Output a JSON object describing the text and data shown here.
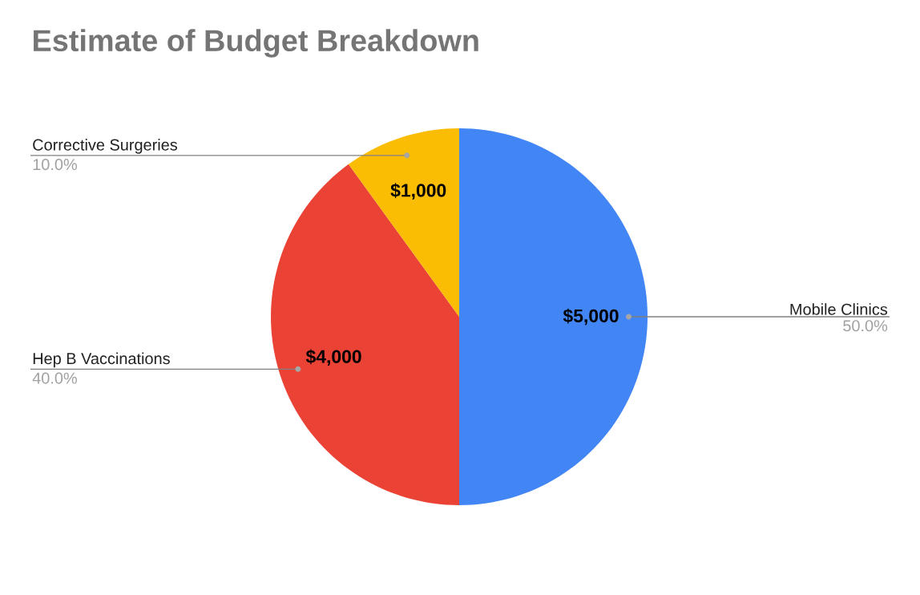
{
  "chart_data": {
    "type": "pie",
    "title": "Estimate of Budget Breakdown",
    "categories": [
      "Mobile Clinics",
      "Hep B Vaccinations",
      "Corrective Surgeries"
    ],
    "values": [
      5000,
      4000,
      1000
    ],
    "colors": [
      "#4285f4",
      "#ea4335",
      "#fbbc04"
    ],
    "value_labels": [
      "$5,000",
      "$4,000",
      "$1,000"
    ],
    "annotations": [
      "50.0%",
      "40.0%",
      "10.0%"
    ]
  }
}
